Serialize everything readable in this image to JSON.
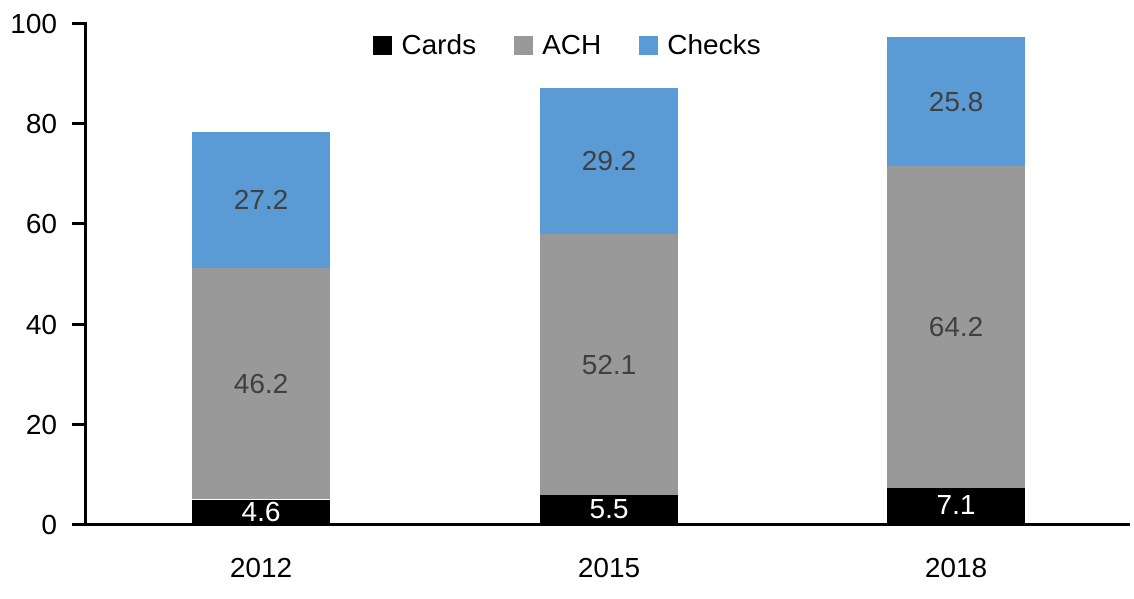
{
  "chart_data": {
    "type": "bar",
    "stacked": true,
    "title": "",
    "xlabel": "",
    "ylabel": "",
    "categories": [
      "2012",
      "2015",
      "2018"
    ],
    "series": [
      {
        "name": "Cards",
        "color": "#000000",
        "label_color": "#ffffff",
        "values": [
          4.6,
          5.5,
          7.1
        ]
      },
      {
        "name": "ACH",
        "color": "#999999",
        "label_color": "#404040",
        "values": [
          46.2,
          52.1,
          64.2
        ]
      },
      {
        "name": "Checks",
        "color": "#5B9BD5",
        "label_color": "#404040",
        "values": [
          27.2,
          29.2,
          25.8
        ]
      }
    ],
    "yticks": [
      0,
      20,
      40,
      60,
      80,
      100
    ],
    "ylim": [
      0,
      100
    ],
    "legend_position": "top-center",
    "grid": false,
    "axis_color": "#000000"
  }
}
